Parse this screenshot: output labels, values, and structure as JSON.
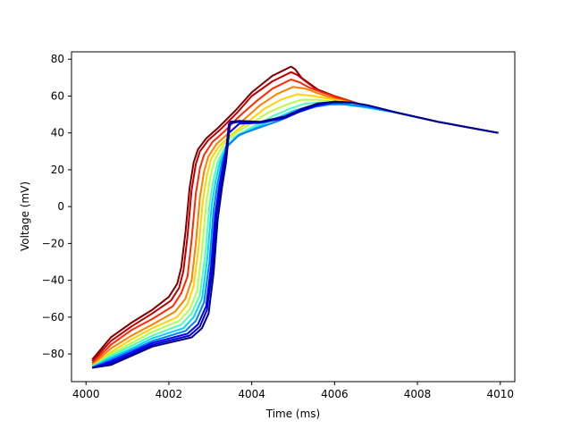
{
  "chart_data": {
    "type": "line",
    "title": "",
    "xlabel": "Time (ms)",
    "ylabel": "Voltage (mV)",
    "xlim": [
      3999.65,
      4010.35
    ],
    "ylim": [
      -95,
      84
    ],
    "xticks": [
      4000,
      4002,
      4004,
      4006,
      4008,
      4010
    ],
    "yticks": [
      -80,
      -60,
      -40,
      -20,
      0,
      20,
      40,
      60,
      80
    ],
    "grid": false,
    "legend": "none",
    "colormap": "jet",
    "series": [
      {
        "color": "#7f0000",
        "x": [
          4000.15,
          4000.6,
          4001.1,
          4001.6,
          4002.0,
          4002.2,
          4002.3,
          4002.4,
          4002.5,
          4002.6,
          4002.7,
          4002.9,
          4003.2,
          4003.6,
          4004.0,
          4004.5,
          4004.95,
          4005.05,
          4005.2,
          4005.6,
          4006.0,
          4006.7,
          4007.5,
          4008.5,
          4009.95
        ],
        "y": [
          -83,
          -71,
          -63,
          -56,
          -49,
          -42,
          -33,
          -14,
          10,
          24,
          31,
          37,
          43,
          52,
          62,
          71,
          76,
          74.5,
          70,
          63.5,
          60,
          55,
          51,
          46,
          40
        ]
      },
      {
        "color": "#c00000",
        "x": [
          4000.15,
          4000.6,
          4001.1,
          4001.6,
          4002.05,
          4002.25,
          4002.35,
          4002.45,
          4002.55,
          4002.65,
          4002.75,
          4002.95,
          4003.25,
          4003.65,
          4004.0,
          4004.5,
          4004.95,
          4005.1,
          4005.3,
          4005.6,
          4006.0,
          4006.7,
          4007.5,
          4008.5,
          4009.95
        ],
        "y": [
          -84,
          -73,
          -65,
          -58,
          -51,
          -44,
          -35,
          -16,
          9,
          23,
          30,
          36,
          42,
          51,
          60,
          68,
          73,
          71.5,
          68,
          63,
          59.5,
          55,
          51,
          46,
          40
        ]
      },
      {
        "color": "#ff2a00",
        "x": [
          4000.15,
          4000.6,
          4001.1,
          4001.6,
          4002.1,
          4002.3,
          4002.45,
          4002.55,
          4002.65,
          4002.75,
          4002.85,
          4003.05,
          4003.35,
          4003.7,
          4004.1,
          4004.5,
          4004.95,
          4005.15,
          4005.4,
          4005.7,
          4006.1,
          4006.7,
          4007.5,
          4008.5,
          4009.95
        ],
        "y": [
          -85,
          -75,
          -67,
          -61,
          -54,
          -47,
          -38,
          -18,
          7,
          21,
          28,
          35,
          41,
          49,
          57,
          64,
          69,
          67.5,
          64.5,
          62,
          59,
          55,
          51,
          46,
          40
        ]
      },
      {
        "color": "#ff7f00",
        "x": [
          4000.15,
          4000.6,
          4001.1,
          4001.6,
          4002.15,
          4002.4,
          4002.55,
          4002.65,
          4002.75,
          4002.85,
          4002.95,
          4003.15,
          4003.45,
          4003.8,
          4004.2,
          4004.6,
          4005.0,
          4005.3,
          4005.6,
          4006.0,
          4006.7,
          4007.5,
          4008.5,
          4009.95
        ],
        "y": [
          -86,
          -77,
          -70,
          -64,
          -57,
          -50,
          -40,
          -20,
          5,
          19,
          27,
          34,
          40,
          47,
          55,
          61,
          65,
          64,
          61.5,
          58.5,
          55,
          51,
          46,
          40
        ]
      },
      {
        "color": "#ffd400",
        "x": [
          4000.15,
          4000.6,
          4001.1,
          4001.6,
          4002.2,
          4002.45,
          4002.6,
          4002.72,
          4002.82,
          4002.92,
          4003.02,
          4003.22,
          4003.5,
          4003.85,
          4004.3,
          4004.7,
          4005.1,
          4005.5,
          4006.0,
          4006.7,
          4007.5,
          4008.5,
          4009.95
        ],
        "y": [
          -86.5,
          -79,
          -72,
          -66,
          -60,
          -53,
          -43,
          -22,
          3,
          17,
          26,
          33,
          39,
          45,
          53,
          58,
          61,
          60,
          58,
          55,
          51,
          46,
          40
        ]
      },
      {
        "color": "#b3ff4c",
        "x": [
          4000.15,
          4000.6,
          4001.1,
          4001.6,
          4002.25,
          4002.5,
          4002.68,
          4002.8,
          4002.9,
          4003.0,
          4003.1,
          4003.3,
          4003.55,
          4003.9,
          4004.4,
          4004.8,
          4005.2,
          4005.6,
          4006.0,
          4006.7,
          4007.5,
          4008.5,
          4009.95
        ],
        "y": [
          -87,
          -80,
          -74,
          -68,
          -62,
          -56,
          -46,
          -24,
          2,
          16,
          25,
          33,
          39,
          44,
          51,
          55,
          58,
          58,
          57,
          54.5,
          51,
          46,
          40
        ]
      },
      {
        "color": "#4cffb3",
        "x": [
          4000.15,
          4000.6,
          4001.1,
          4001.6,
          4002.3,
          4002.55,
          4002.75,
          4002.88,
          4002.98,
          4003.08,
          4003.18,
          4003.35,
          4003.6,
          4004.0,
          4004.5,
          4004.9,
          4005.3,
          4005.7,
          4006.1,
          4006.7,
          4007.5,
          4008.5,
          4009.95
        ],
        "y": [
          -87,
          -81,
          -75.5,
          -70,
          -64,
          -58,
          -48,
          -26,
          1,
          15,
          24,
          32,
          38,
          43,
          49,
          53,
          56,
          56.5,
          56,
          54,
          51,
          46,
          40
        ]
      },
      {
        "color": "#00d4ff",
        "x": [
          4000.15,
          4000.6,
          4001.1,
          4001.6,
          4002.35,
          4002.6,
          4002.8,
          4002.93,
          4003.03,
          4003.13,
          4003.23,
          4003.38,
          4003.65,
          4004.1,
          4004.6,
          4005.0,
          4005.4,
          4005.8,
          4006.2,
          4006.7,
          4007.5,
          4008.5,
          4009.95
        ],
        "y": [
          -87,
          -82,
          -77,
          -71.5,
          -66,
          -60,
          -50,
          -28,
          0,
          14,
          24,
          32,
          38,
          43,
          48,
          52,
          54.5,
          55.5,
          55.5,
          54,
          51,
          46,
          40
        ]
      },
      {
        "color": "#007fff",
        "x": [
          4000.15,
          4000.6,
          4001.1,
          4001.6,
          4002.4,
          4002.65,
          4002.85,
          4002.98,
          4003.08,
          4003.18,
          4003.28,
          4003.42,
          4003.7,
          4004.2,
          4004.7,
          4005.1,
          4005.5,
          4005.9,
          4006.3,
          4006.8,
          4007.5,
          4008.5,
          4009.95
        ],
        "y": [
          -87.5,
          -83,
          -78,
          -73,
          -67.5,
          -62,
          -52,
          -30,
          -2,
          13,
          24,
          33,
          39,
          43,
          47,
          51,
          54,
          55.5,
          55.5,
          54,
          51,
          46,
          40
        ]
      },
      {
        "color": "#0000ff",
        "x": [
          4000.15,
          4000.6,
          4001.1,
          4001.6,
          4002.45,
          4002.7,
          4002.9,
          4003.02,
          4003.12,
          4003.22,
          4003.32,
          4003.45,
          4003.7,
          4004.2,
          4004.8,
          4005.2,
          4005.6,
          4006.0,
          4006.4,
          4006.8,
          4007.5,
          4008.5,
          4009.95
        ],
        "y": [
          -87.5,
          -84,
          -79,
          -74,
          -69,
          -64,
          -54,
          -32,
          -4,
          12,
          24,
          40,
          45,
          45.5,
          48,
          52,
          55,
          56.5,
          56.5,
          55,
          51,
          46,
          40
        ]
      },
      {
        "color": "#0000c8",
        "x": [
          4000.15,
          4000.6,
          4001.1,
          4001.6,
          4002.5,
          4002.75,
          4002.92,
          4003.05,
          4003.15,
          4003.25,
          4003.35,
          4003.45,
          4003.7,
          4004.2,
          4004.8,
          4005.2,
          4005.6,
          4006.0,
          4006.4,
          4006.8,
          4007.5,
          4008.5,
          4009.95
        ],
        "y": [
          -87.5,
          -85,
          -80,
          -75,
          -70,
          -65,
          -56,
          -34,
          -5,
          11,
          24,
          45,
          46,
          45.5,
          48.5,
          52.5,
          55.5,
          57,
          56.5,
          55,
          51,
          46,
          40
        ]
      },
      {
        "color": "#00008b",
        "x": [
          4000.15,
          4000.6,
          4001.1,
          4001.6,
          4002.55,
          4002.8,
          4002.96,
          4003.08,
          4003.18,
          4003.28,
          4003.38,
          4003.48,
          4003.7,
          4004.2,
          4004.8,
          4005.2,
          4005.6,
          4006.0,
          4006.4,
          4006.8,
          4007.5,
          4008.5,
          4009.95
        ],
        "y": [
          -87.5,
          -86,
          -81,
          -76,
          -71,
          -66,
          -58,
          -36,
          -7,
          10,
          24,
          46,
          46.5,
          46,
          49,
          53,
          56,
          57,
          56.5,
          55,
          51,
          46,
          40
        ]
      }
    ]
  }
}
